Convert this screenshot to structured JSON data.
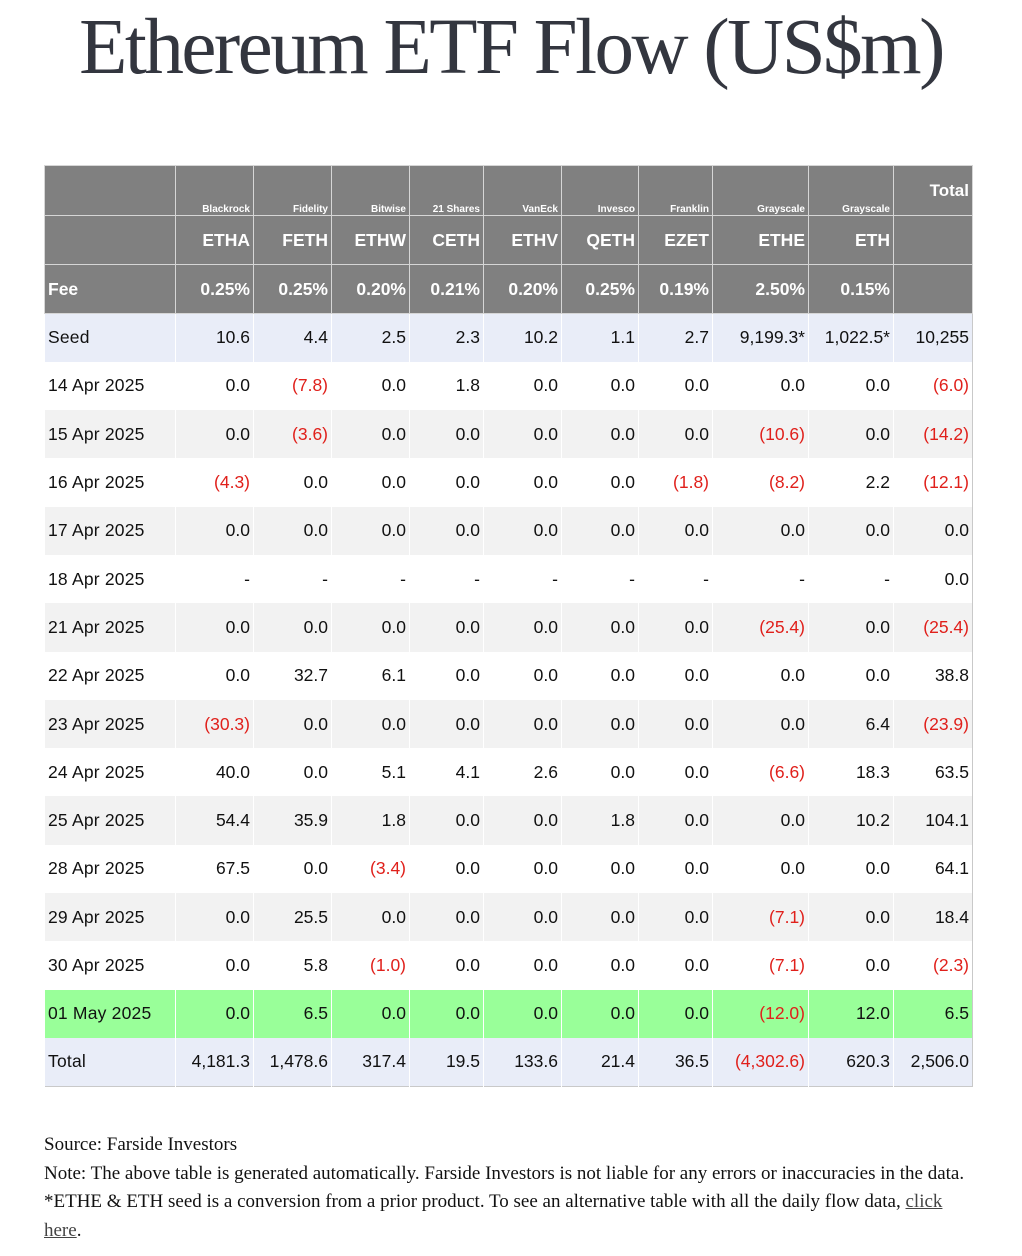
{
  "title": "Ethereum ETF Flow (US$m)",
  "colors": {
    "header_bg": "#808080",
    "header_text": "#ffffff",
    "negative": "#e0201b",
    "highlight_row": "#99ff99",
    "summary_row": "#e9edf8",
    "stripe": "#f2f2f2"
  },
  "chart_data": {
    "type": "table",
    "title": "Ethereum ETF Flow (US$m)",
    "issuers": [
      "Blackrock",
      "Fidelity",
      "Bitwise",
      "21 Shares",
      "VanEck",
      "Invesco",
      "Franklin",
      "Grayscale",
      "Grayscale"
    ],
    "total_header": "Total",
    "tickers": [
      "ETHA",
      "FETH",
      "ETHW",
      "CETH",
      "ETHV",
      "QETH",
      "EZET",
      "ETHE",
      "ETH"
    ],
    "fee_label": "Fee",
    "fees": [
      "0.25%",
      "0.25%",
      "0.20%",
      "0.21%",
      "0.20%",
      "0.25%",
      "0.19%",
      "2.50%",
      "0.15%"
    ],
    "rows": [
      {
        "label": "Seed",
        "values": [
          "10.6",
          "4.4",
          "2.5",
          "2.3",
          "10.2",
          "1.1",
          "2.7",
          "9,199.3*",
          "1,022.5*"
        ],
        "total": "10,255"
      },
      {
        "label": "14 Apr 2025",
        "values": [
          "0.0",
          "(7.8)",
          "0.0",
          "1.8",
          "0.0",
          "0.0",
          "0.0",
          "0.0",
          "0.0"
        ],
        "total": "(6.0)"
      },
      {
        "label": "15 Apr 2025",
        "values": [
          "0.0",
          "(3.6)",
          "0.0",
          "0.0",
          "0.0",
          "0.0",
          "0.0",
          "(10.6)",
          "0.0"
        ],
        "total": "(14.2)"
      },
      {
        "label": "16 Apr 2025",
        "values": [
          "(4.3)",
          "0.0",
          "0.0",
          "0.0",
          "0.0",
          "0.0",
          "(1.8)",
          "(8.2)",
          "2.2"
        ],
        "total": "(12.1)"
      },
      {
        "label": "17 Apr 2025",
        "values": [
          "0.0",
          "0.0",
          "0.0",
          "0.0",
          "0.0",
          "0.0",
          "0.0",
          "0.0",
          "0.0"
        ],
        "total": "0.0"
      },
      {
        "label": "18 Apr 2025",
        "values": [
          "-",
          "-",
          "-",
          "-",
          "-",
          "-",
          "-",
          "-",
          "-"
        ],
        "total": "0.0"
      },
      {
        "label": "21 Apr 2025",
        "values": [
          "0.0",
          "0.0",
          "0.0",
          "0.0",
          "0.0",
          "0.0",
          "0.0",
          "(25.4)",
          "0.0"
        ],
        "total": "(25.4)"
      },
      {
        "label": "22 Apr 2025",
        "values": [
          "0.0",
          "32.7",
          "6.1",
          "0.0",
          "0.0",
          "0.0",
          "0.0",
          "0.0",
          "0.0"
        ],
        "total": "38.8"
      },
      {
        "label": "23 Apr 2025",
        "values": [
          "(30.3)",
          "0.0",
          "0.0",
          "0.0",
          "0.0",
          "0.0",
          "0.0",
          "0.0",
          "6.4"
        ],
        "total": "(23.9)"
      },
      {
        "label": "24 Apr 2025",
        "values": [
          "40.0",
          "0.0",
          "5.1",
          "4.1",
          "2.6",
          "0.0",
          "0.0",
          "(6.6)",
          "18.3"
        ],
        "total": "63.5"
      },
      {
        "label": "25 Apr 2025",
        "values": [
          "54.4",
          "35.9",
          "1.8",
          "0.0",
          "0.0",
          "1.8",
          "0.0",
          "0.0",
          "10.2"
        ],
        "total": "104.1"
      },
      {
        "label": "28 Apr 2025",
        "values": [
          "67.5",
          "0.0",
          "(3.4)",
          "0.0",
          "0.0",
          "0.0",
          "0.0",
          "0.0",
          "0.0"
        ],
        "total": "64.1"
      },
      {
        "label": "29 Apr 2025",
        "values": [
          "0.0",
          "25.5",
          "0.0",
          "0.0",
          "0.0",
          "0.0",
          "0.0",
          "(7.1)",
          "0.0"
        ],
        "total": "18.4"
      },
      {
        "label": "30 Apr 2025",
        "values": [
          "0.0",
          "5.8",
          "(1.0)",
          "0.0",
          "0.0",
          "0.0",
          "0.0",
          "(7.1)",
          "0.0"
        ],
        "total": "(2.3)"
      },
      {
        "label": "01 May 2025",
        "values": [
          "0.0",
          "6.5",
          "0.0",
          "0.0",
          "0.0",
          "0.0",
          "0.0",
          "(12.0)",
          "12.0"
        ],
        "total": "6.5",
        "highlight": true
      },
      {
        "label": "Total",
        "values": [
          "4,181.3",
          "1,478.6",
          "317.4",
          "19.5",
          "133.6",
          "21.4",
          "36.5",
          "(4,302.6)",
          "620.3"
        ],
        "total": "2,506.0"
      }
    ]
  },
  "footer": {
    "source": "Source: Farside Investors",
    "note": "Note: The above table is generated automatically. Farside Investors is not liable for any errors or inaccuracies in the data. *ETHE & ETH seed is a conversion from a prior product.  To see an alternative table with all the daily flow data, ",
    "link_text": "click here",
    "end": "."
  }
}
